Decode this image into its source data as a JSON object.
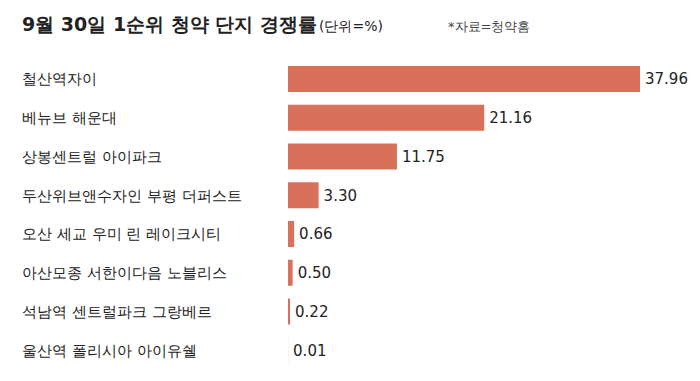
{
  "chart_data": {
    "type": "bar",
    "title": "9월 30일 1순위 청약 단지 경쟁률",
    "subtitle": "(단위=%)",
    "annotation": "*자료=청약홈",
    "orientation": "horizontal",
    "categories": [
      "철산역자이",
      "베뉴브 해운대",
      "상봉센트럴 아이파크",
      "두산위브앤수자인 부평 더퍼스트",
      "오산 세교 우미 린 레이크시티",
      "아산모종 서한이다음 노블리스",
      "석남역 센트럴파크 그랑베르",
      "울산역 폴리시아 아이유쉘"
    ],
    "values": [
      37.96,
      21.16,
      11.75,
      3.3,
      0.66,
      0.5,
      0.22,
      0.01
    ],
    "value_labels": [
      "37.96",
      "21.16",
      "11.75",
      "3.30",
      "0.66",
      "0.50",
      "0.22",
      "0.01"
    ],
    "color": "#d9705a",
    "data_labels": true,
    "tick_labels": "y",
    "grid": false
  }
}
